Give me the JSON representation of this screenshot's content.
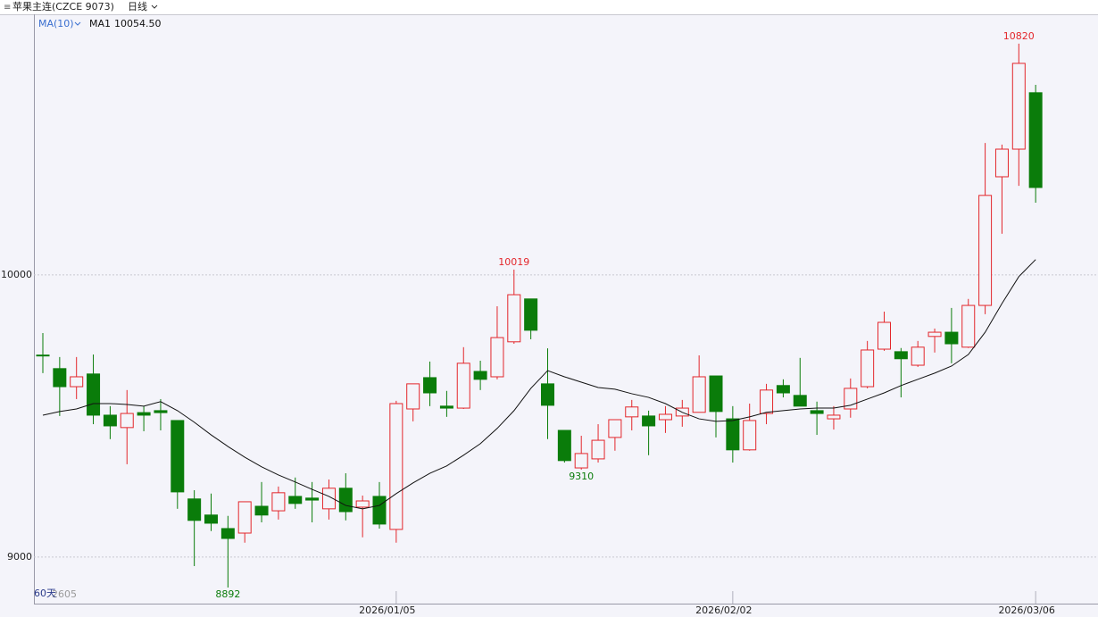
{
  "header": {
    "instrument": "苹果主连(CZCE 9073)",
    "period": "日线",
    "indicator": "MA(10)",
    "day_count": "60天",
    "contract": "2605"
  },
  "chart_data": {
    "type": "candlestick",
    "categories": [
      null,
      null,
      null,
      null,
      null,
      null,
      null,
      null,
      null,
      null,
      null,
      null,
      null,
      null,
      null,
      null,
      null,
      null,
      null,
      null,
      null,
      "2026/01/05",
      null,
      null,
      null,
      null,
      null,
      null,
      null,
      null,
      null,
      null,
      null,
      null,
      null,
      null,
      null,
      null,
      null,
      null,
      null,
      "2026/02/02",
      null,
      null,
      null,
      null,
      null,
      null,
      null,
      null,
      null,
      null,
      null,
      null,
      null,
      null,
      null,
      null,
      null,
      "2026/03/06"
    ],
    "open": [
      9716,
      9668,
      9604,
      9649,
      9503,
      9459,
      9512,
      9519,
      9484,
      9206,
      9149,
      9101,
      9085,
      9180,
      9164,
      9215,
      9209,
      9171,
      9244,
      9177,
      9215,
      9098,
      9525,
      9636,
      9535,
      9528,
      9658,
      9639,
      9763,
      9915,
      9614,
      9449,
      9316,
      9348,
      9424,
      9497,
      9500,
      9487,
      9500,
      9513,
      9642,
      9490,
      9380,
      9509,
      9608,
      9573,
      9519,
      9490,
      9525,
      9604,
      9737,
      9728,
      9680,
      9782,
      9797,
      9744,
      9892,
      10348,
      10446,
      10646
    ],
    "high": [
      9794,
      9709,
      9709,
      9718,
      9535,
      9592,
      9535,
      9560,
      9484,
      9237,
      9225,
      9146,
      9196,
      9266,
      9250,
      9282,
      9266,
      9275,
      9297,
      9218,
      9266,
      9554,
      9614,
      9693,
      9589,
      9744,
      9696,
      9889,
      10019,
      9915,
      9740,
      9449,
      9430,
      9471,
      9487,
      9557,
      9519,
      9535,
      9557,
      9715,
      9642,
      9535,
      9544,
      9614,
      9630,
      9706,
      9551,
      9535,
      9633,
      9766,
      9870,
      9741,
      9766,
      9810,
      9883,
      9915,
      10468,
      10462,
      10820,
      10674
    ],
    "low": [
      9652,
      9500,
      9560,
      9471,
      9418,
      9329,
      9446,
      9449,
      9171,
      8968,
      9092,
      8892,
      9051,
      9123,
      9133,
      9171,
      9123,
      9133,
      9130,
      9070,
      9101,
      9051,
      9481,
      9535,
      9497,
      9525,
      9592,
      9630,
      9756,
      9772,
      9418,
      9335,
      9310,
      9335,
      9377,
      9449,
      9361,
      9440,
      9462,
      9513,
      9424,
      9335,
      9377,
      9471,
      9566,
      9535,
      9433,
      9452,
      9494,
      9598,
      9731,
      9566,
      9674,
      9725,
      9687,
      9741,
      9861,
      10146,
      10316,
      10256
    ],
    "close": [
      9714,
      9604,
      9639,
      9503,
      9465,
      9509,
      9503,
      9512,
      9231,
      9130,
      9120,
      9066,
      9196,
      9149,
      9228,
      9190,
      9202,
      9244,
      9161,
      9199,
      9117,
      9544,
      9614,
      9582,
      9528,
      9687,
      9630,
      9778,
      9930,
      9804,
      9538,
      9342,
      9367,
      9414,
      9487,
      9532,
      9465,
      9506,
      9528,
      9639,
      9516,
      9380,
      9484,
      9592,
      9582,
      9535,
      9509,
      9503,
      9598,
      9734,
      9832,
      9703,
      9744,
      9797,
      9756,
      9892,
      10282,
      10446,
      10750,
      10310
    ],
    "up_color": "#e3262b",
    "down_color": "#0a7c0a",
    "series": [
      {
        "name": "MA1",
        "color": "#111111",
        "last_label": "10054.50",
        "values": [
          9503,
          9516,
          9525,
          9544,
          9544,
          9541,
          9535,
          9551,
          9519,
          9478,
          9433,
          9392,
          9354,
          9320,
          9291,
          9266,
          9240,
          9215,
          9183,
          9171,
          9183,
          9225,
          9263,
          9297,
          9323,
          9361,
          9402,
          9456,
          9519,
          9598,
          9661,
          9639,
          9620,
          9601,
          9595,
          9579,
          9566,
          9544,
          9513,
          9490,
          9481,
          9484,
          9497,
          9513,
          9519,
          9525,
          9528,
          9528,
          9538,
          9560,
          9582,
          9608,
          9630,
          9652,
          9677,
          9718,
          9797,
          9899,
          9994,
          10054.5
        ]
      }
    ],
    "ylim": [
      8835,
      10924
    ],
    "yticks": [
      9000,
      10000
    ],
    "grid": true
  }
}
